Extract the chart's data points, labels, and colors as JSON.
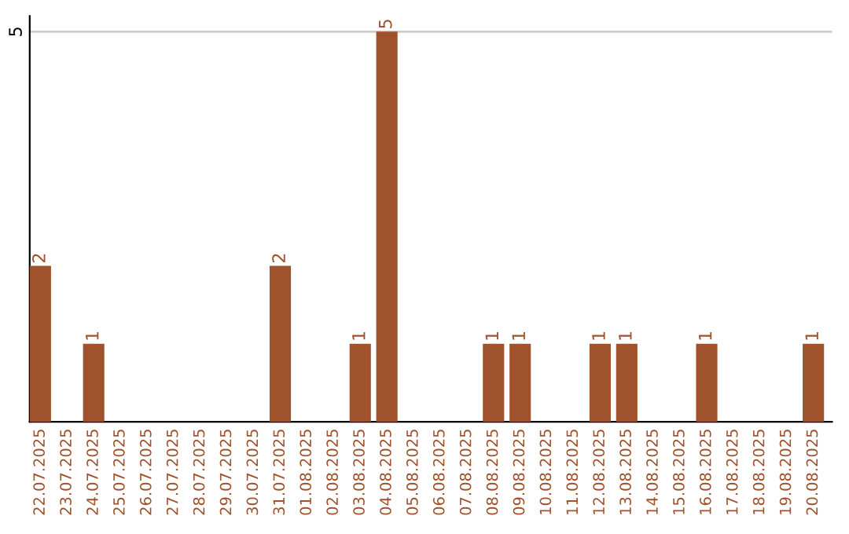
{
  "chart_data": {
    "type": "bar",
    "categories": [
      "22.07.2025",
      "23.07.2025",
      "24.07.2025",
      "25.07.2025",
      "26.07.2025",
      "27.07.2025",
      "28.07.2025",
      "29.07.2025",
      "30.07.2025",
      "31.07.2025",
      "01.08.2025",
      "02.08.2025",
      "03.08.2025",
      "04.08.2025",
      "05.08.2025",
      "06.08.2025",
      "07.08.2025",
      "08.08.2025",
      "09.08.2025",
      "10.08.2025",
      "11.08.2025",
      "12.08.2025",
      "13.08.2025",
      "14.08.2025",
      "15.08.2025",
      "16.08.2025",
      "17.08.2025",
      "18.08.2025",
      "19.08.2025",
      "20.08.2025"
    ],
    "values": [
      2,
      0,
      1,
      0,
      0,
      0,
      0,
      0,
      0,
      2,
      0,
      0,
      1,
      5,
      0,
      0,
      0,
      1,
      1,
      0,
      0,
      1,
      1,
      0,
      0,
      1,
      0,
      0,
      0,
      1
    ],
    "value_labels": [
      "2",
      null,
      "1",
      null,
      null,
      null,
      null,
      null,
      null,
      "2",
      null,
      null,
      "1",
      "5",
      null,
      null,
      null,
      "1",
      "1",
      null,
      null,
      "1",
      "1",
      null,
      null,
      "1",
      null,
      null,
      null,
      "1"
    ],
    "color": "#a0522d",
    "ylim": [
      0,
      5.2
    ],
    "yticks": [
      5
    ],
    "grid": "y"
  }
}
